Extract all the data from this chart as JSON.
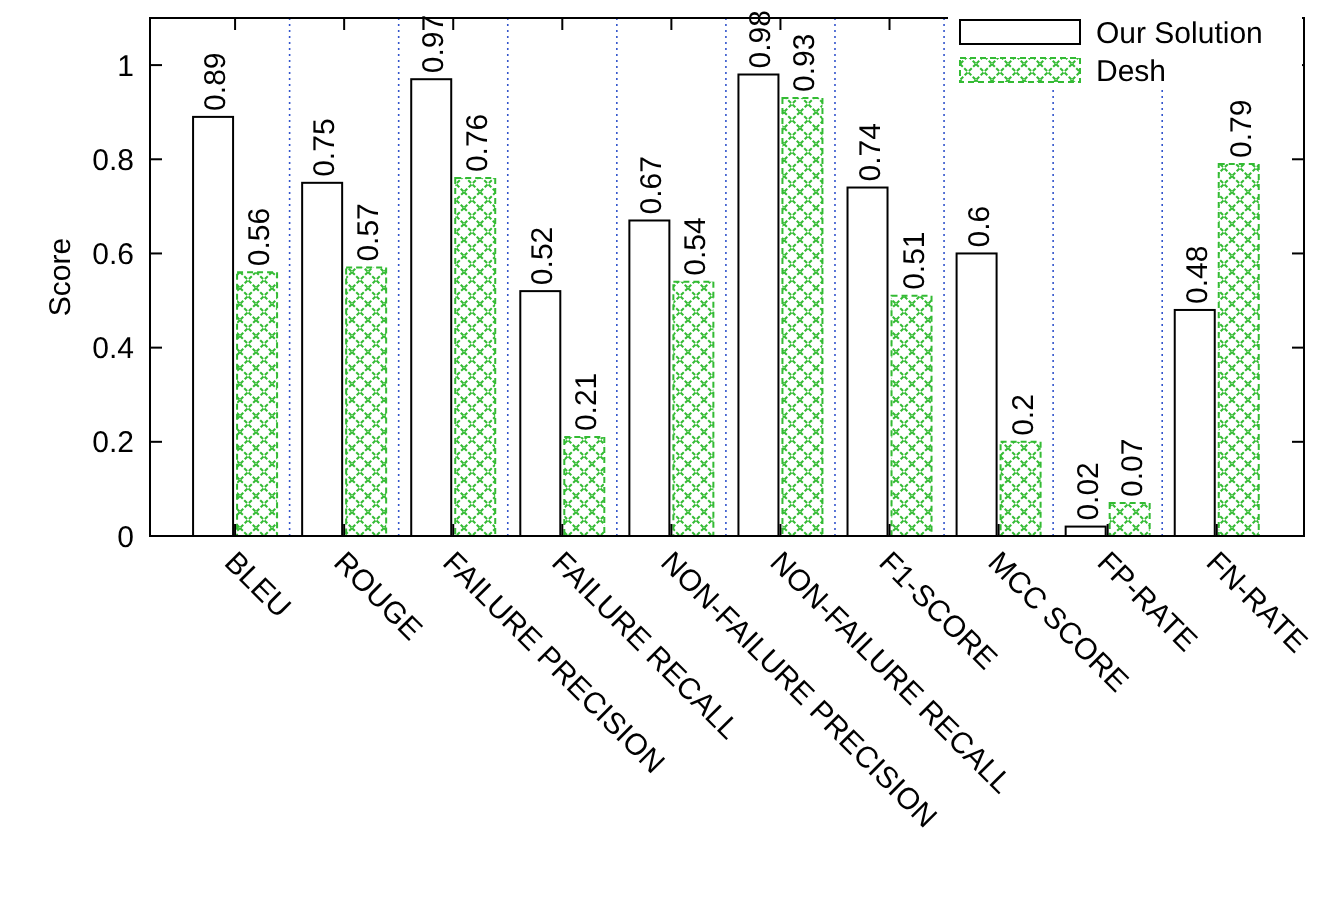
{
  "chart_data": {
    "type": "bar",
    "ylabel": "Score",
    "categories": [
      "BLEU",
      "ROUGE",
      "FAILURE PRECISION",
      "FAILURE RECALL",
      "NON-FAILURE PRECISION",
      "NON-FAILURE RECALL",
      "F1-SCORE",
      "MCC SCORE",
      "FP-RATE",
      "FN-RATE"
    ],
    "series": [
      {
        "name": "Our Solution",
        "color": "#ffffff",
        "values": [
          0.89,
          0.75,
          0.97,
          0.52,
          0.67,
          0.98,
          0.74,
          0.6,
          0.02,
          0.48
        ]
      },
      {
        "name": "Desh",
        "color": "#33bb33",
        "values": [
          0.56,
          0.57,
          0.76,
          0.21,
          0.54,
          0.93,
          0.51,
          0.2,
          0.07,
          0.79
        ]
      }
    ],
    "ylim": [
      0,
      1.1
    ],
    "yticks": [
      0,
      0.2,
      0.4,
      0.6,
      0.8,
      1
    ],
    "grid": "x",
    "legend": "top right",
    "data_labels": true
  }
}
